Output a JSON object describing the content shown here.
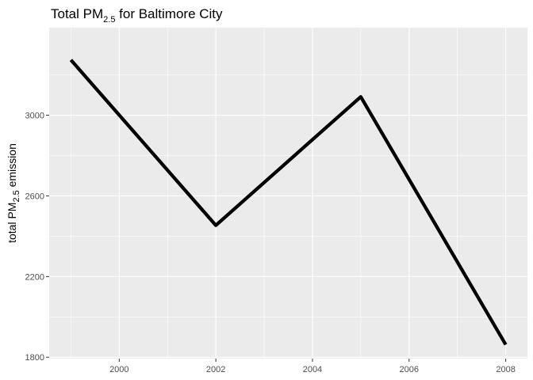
{
  "chart_data": {
    "type": "line",
    "title": {
      "prefix": "Total PM",
      "subscript": "2.5",
      "suffix": " for Baltimore City"
    },
    "xlabel": "",
    "ylabel": {
      "prefix": "total PM",
      "subscript": "2.5",
      "suffix": " emission"
    },
    "xlim": [
      1998.55,
      2008.45
    ],
    "ylim": [
      1793,
      3434
    ],
    "x_ticks": [
      2000,
      2002,
      2004,
      2006,
      2008
    ],
    "y_ticks": [
      1800,
      2200,
      2600,
      3000
    ],
    "grid": true,
    "legend": "none",
    "series": [
      {
        "x": [
          1999,
          2002,
          2005,
          2008
        ],
        "values": [
          3274.18,
          2453.92,
          3091.35,
          1862.28
        ],
        "color": "#000000"
      }
    ],
    "colors": {
      "panel": "#EBEBEB",
      "grid": "#FFFFFF",
      "tick_text": "#4D4D4D",
      "axis_tick": "#333333"
    }
  }
}
